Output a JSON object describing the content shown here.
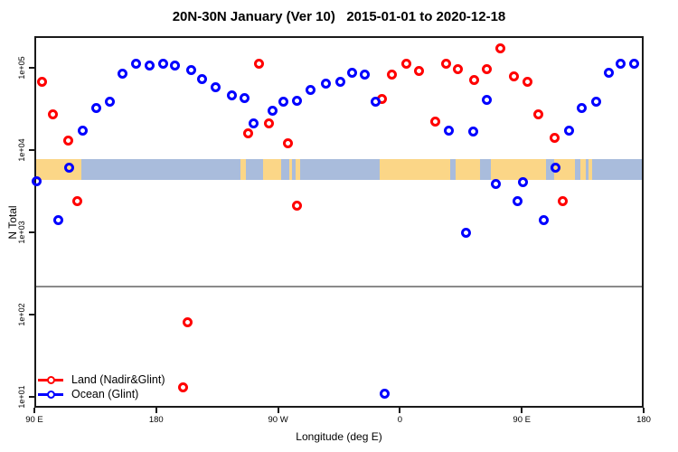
{
  "figure": {
    "title": "20N-30N January (Ver 10)   2015-01-01 to 2020-12-18",
    "x_axis": {
      "label": "Longitude (deg E)"
    },
    "y_axis": {
      "label": "N Total"
    }
  },
  "chart_data": {
    "type": "scatter",
    "title": "20N-30N January (Ver 10)   2015-01-01 to 2020-12-18",
    "xlabel": "Longitude (deg E)",
    "ylabel": "N Total",
    "x_scale": "linear",
    "y_scale": "log",
    "xlim": [
      90,
      540
    ],
    "ylim": [
      7.4,
      240000
    ],
    "x_ticks": {
      "values": [
        90,
        180,
        270,
        360,
        450,
        540
      ],
      "labels": [
        "90 E",
        "180",
        "90 W",
        "0",
        "90 E",
        "180"
      ]
    },
    "y_ticks": {
      "values": [
        100000,
        10000,
        1000,
        100,
        10
      ],
      "labels": [
        "1e+05",
        "1e+04",
        "1e+03",
        "1e+02",
        "1e+01"
      ]
    },
    "grid": false,
    "legend_position": "bottom-left-inside",
    "reference_line": {
      "n": 220,
      "color": "#8a8a8a"
    },
    "map_band": {
      "description": "20N-30N latitude strip map across longitude",
      "n_top": 7800,
      "n_bottom": 4300,
      "ocean_color": "#a9bcdc",
      "land_color": "#fbd687",
      "land_segments_deg": [
        [
          90,
          125
        ],
        [
          242,
          246
        ],
        [
          259,
          272
        ],
        [
          278,
          280
        ],
        [
          283,
          286
        ],
        [
          345,
          397
        ],
        [
          401,
          419
        ],
        [
          427,
          468
        ],
        [
          474,
          489
        ],
        [
          493,
          497
        ],
        [
          499,
          502
        ]
      ]
    },
    "series": [
      {
        "name": "Land (Nadir&Glint)",
        "color": "#ff0000",
        "marker": "open-circle",
        "points": [
          [
            96,
            67000
          ],
          [
            104,
            27000
          ],
          [
            115,
            13000
          ],
          [
            122,
            2400
          ],
          [
            200,
            13
          ],
          [
            203,
            80
          ],
          [
            248,
            16000
          ],
          [
            256,
            110000
          ],
          [
            263,
            21000
          ],
          [
            277,
            12000
          ],
          [
            284,
            2100
          ],
          [
            347,
            41000
          ],
          [
            354,
            81000
          ],
          [
            365,
            110000
          ],
          [
            374,
            91000
          ],
          [
            386,
            22000
          ],
          [
            394,
            110000
          ],
          [
            403,
            95000
          ],
          [
            415,
            70000
          ],
          [
            424,
            95000
          ],
          [
            434,
            170000
          ],
          [
            444,
            78000
          ],
          [
            454,
            67000
          ],
          [
            462,
            27000
          ],
          [
            474,
            14000
          ],
          [
            480,
            2400
          ]
        ]
      },
      {
        "name": "Ocean (Glint)",
        "color": "#0000ff",
        "marker": "open-circle",
        "points": [
          [
            92,
            4200
          ],
          [
            108,
            1400
          ],
          [
            116,
            6000
          ],
          [
            126,
            17000
          ],
          [
            136,
            32000
          ],
          [
            146,
            38000
          ],
          [
            155,
            85000
          ],
          [
            165,
            110000
          ],
          [
            175,
            105000
          ],
          [
            185,
            110000
          ],
          [
            194,
            105000
          ],
          [
            206,
            93000
          ],
          [
            214,
            72000
          ],
          [
            224,
            57000
          ],
          [
            236,
            46000
          ],
          [
            245,
            43000
          ],
          [
            252,
            21000
          ],
          [
            266,
            30000
          ],
          [
            274,
            38000
          ],
          [
            284,
            39000
          ],
          [
            294,
            54000
          ],
          [
            305,
            64000
          ],
          [
            316,
            67000
          ],
          [
            325,
            86000
          ],
          [
            334,
            81000
          ],
          [
            342,
            38000
          ],
          [
            349,
            11
          ],
          [
            396,
            17000
          ],
          [
            409,
            980
          ],
          [
            414,
            16500
          ],
          [
            424,
            40000
          ],
          [
            431,
            3900
          ],
          [
            447,
            2400
          ],
          [
            451,
            4100
          ],
          [
            466,
            1400
          ],
          [
            475,
            6000
          ],
          [
            485,
            17000
          ],
          [
            494,
            32000
          ],
          [
            505,
            38000
          ],
          [
            514,
            86000
          ],
          [
            523,
            110000
          ],
          [
            533,
            110000
          ]
        ]
      }
    ]
  }
}
